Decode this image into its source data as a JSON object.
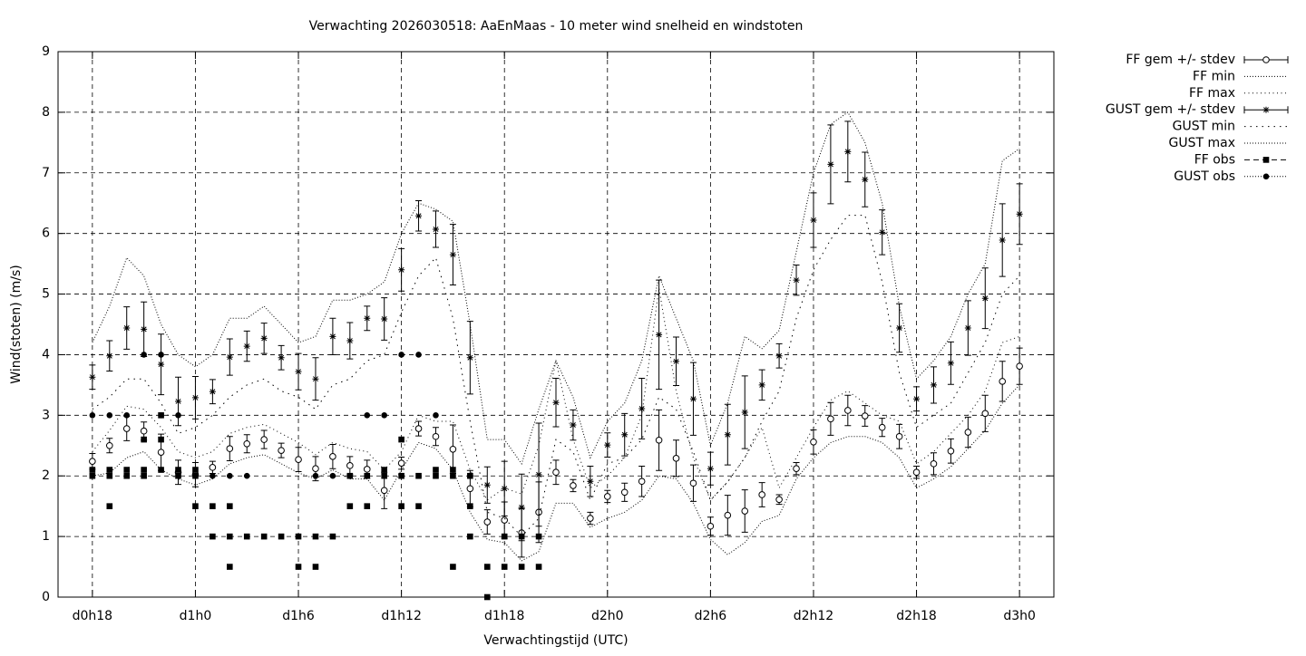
{
  "chart_data": {
    "type": "line",
    "title": "Verwachting 2026030518: AaEnMaas - 10 meter wind snelheid en windstoten",
    "x_label": "Verwachtingstijd (UTC)",
    "y_label": "Wind(stoten) (m/s)",
    "color": "#000000",
    "grid": true,
    "legend": "outside-right",
    "xlim": [
      16,
      74
    ],
    "ylim": [
      0,
      9
    ],
    "yticks": [
      0,
      1,
      2,
      3,
      4,
      5,
      6,
      7,
      8,
      9
    ],
    "xticks": [
      {
        "value": 18,
        "label": "d0h18"
      },
      {
        "value": 24,
        "label": "d1h0"
      },
      {
        "value": 30,
        "label": "d1h6"
      },
      {
        "value": 36,
        "label": "d1h12"
      },
      {
        "value": 42,
        "label": "d1h18"
      },
      {
        "value": 48,
        "label": "d2h0"
      },
      {
        "value": 54,
        "label": "d2h6"
      },
      {
        "value": 60,
        "label": "d2h12"
      },
      {
        "value": 66,
        "label": "d2h18"
      },
      {
        "value": 72,
        "label": "d3h0"
      }
    ],
    "x": [
      18,
      19,
      20,
      21,
      22,
      23,
      24,
      25,
      26,
      27,
      28,
      29,
      30,
      31,
      32,
      33,
      34,
      35,
      36,
      37,
      38,
      39,
      40,
      41,
      42,
      43,
      44,
      45,
      46,
      47,
      48,
      49,
      50,
      51,
      52,
      53,
      54,
      55,
      56,
      57,
      58,
      59,
      60,
      61,
      62,
      63,
      64,
      65,
      66,
      67,
      68,
      69,
      70,
      71,
      72
    ],
    "series": [
      {
        "name": "FF gem +/- stdev",
        "style": "errorbar-circle",
        "values": [
          2.24,
          2.5,
          2.78,
          2.74,
          2.39,
          2.06,
          2.02,
          2.14,
          2.45,
          2.53,
          2.6,
          2.42,
          2.27,
          2.12,
          2.32,
          2.17,
          2.11,
          1.76,
          2.21,
          2.78,
          2.65,
          2.44,
          1.79,
          1.24,
          1.27,
          1.06,
          1.4,
          2.06,
          1.84,
          1.3,
          1.66,
          1.73,
          1.91,
          2.59,
          2.29,
          1.88,
          1.17,
          1.35,
          1.42,
          1.69,
          1.61,
          2.12,
          2.56,
          2.94,
          3.08,
          2.99,
          2.8,
          2.65,
          2.06,
          2.2,
          2.41,
          2.72,
          3.03,
          3.56,
          3.81
        ],
        "errors": [
          0.13,
          0.12,
          0.2,
          0.15,
          0.3,
          0.2,
          0.2,
          0.1,
          0.2,
          0.15,
          0.15,
          0.12,
          0.2,
          0.2,
          0.2,
          0.15,
          0.15,
          0.3,
          0.1,
          0.12,
          0.15,
          0.4,
          0.3,
          0.2,
          0.3,
          0.4,
          0.5,
          0.2,
          0.1,
          0.1,
          0.1,
          0.15,
          0.25,
          0.5,
          0.3,
          0.3,
          0.15,
          0.33,
          0.35,
          0.2,
          0.08,
          0.1,
          0.2,
          0.27,
          0.25,
          0.17,
          0.15,
          0.2,
          0.1,
          0.18,
          0.2,
          0.25,
          0.3,
          0.33,
          0.3
        ]
      },
      {
        "name": "FF min",
        "style": "dotted-fine",
        "values": [
          2.0,
          2.05,
          2.3,
          2.4,
          2.1,
          1.95,
          1.85,
          1.95,
          2.2,
          2.3,
          2.35,
          2.2,
          2.05,
          1.95,
          2.1,
          1.95,
          1.95,
          1.6,
          2.1,
          2.55,
          2.45,
          2.1,
          1.4,
          0.95,
          0.9,
          0.6,
          0.75,
          1.55,
          1.55,
          1.15,
          1.3,
          1.4,
          1.6,
          2.0,
          1.95,
          1.55,
          0.95,
          0.7,
          0.9,
          1.25,
          1.35,
          1.95,
          2.3,
          2.55,
          2.65,
          2.65,
          2.55,
          2.3,
          1.8,
          1.95,
          2.15,
          2.45,
          2.75,
          3.2,
          3.5
        ]
      },
      {
        "name": "FF max",
        "style": "dotted-loose",
        "values": [
          2.4,
          2.75,
          3.15,
          3.1,
          2.8,
          2.4,
          2.3,
          2.4,
          2.7,
          2.8,
          2.85,
          2.7,
          2.55,
          2.35,
          2.55,
          2.45,
          2.4,
          2.1,
          2.4,
          3.0,
          2.9,
          2.9,
          2.1,
          1.6,
          1.8,
          1.7,
          2.5,
          3.9,
          2.6,
          1.8,
          2.0,
          2.3,
          3.0,
          5.1,
          3.4,
          2.3,
          1.6,
          1.9,
          2.3,
          2.8,
          1.8,
          2.3,
          2.8,
          3.25,
          3.4,
          3.2,
          3.0,
          2.9,
          2.2,
          2.4,
          2.7,
          3.0,
          3.4,
          4.2,
          4.3
        ]
      },
      {
        "name": "GUST gem +/- stdev",
        "style": "errorbar-star",
        "values": [
          3.63,
          3.98,
          4.44,
          4.42,
          3.84,
          3.23,
          3.29,
          3.39,
          3.96,
          4.14,
          4.27,
          3.95,
          3.72,
          3.6,
          4.3,
          4.23,
          4.6,
          4.59,
          5.4,
          6.29,
          6.07,
          5.65,
          3.95,
          1.85,
          1.79,
          1.48,
          2.02,
          3.21,
          2.84,
          1.91,
          2.51,
          2.68,
          3.11,
          4.33,
          3.89,
          3.27,
          2.12,
          2.68,
          3.05,
          3.5,
          3.98,
          5.23,
          6.22,
          7.14,
          7.35,
          6.89,
          6.02,
          4.44,
          3.27,
          3.5,
          3.86,
          4.44,
          4.93,
          5.89,
          6.32
        ],
        "errors": [
          0.2,
          0.25,
          0.35,
          0.45,
          0.5,
          0.4,
          0.35,
          0.2,
          0.3,
          0.25,
          0.25,
          0.2,
          0.3,
          0.35,
          0.3,
          0.3,
          0.2,
          0.35,
          0.35,
          0.25,
          0.3,
          0.5,
          0.6,
          0.3,
          0.45,
          0.55,
          0.85,
          0.4,
          0.25,
          0.25,
          0.2,
          0.35,
          0.5,
          0.9,
          0.4,
          0.6,
          0.27,
          0.5,
          0.6,
          0.25,
          0.2,
          0.25,
          0.45,
          0.65,
          0.5,
          0.45,
          0.37,
          0.4,
          0.2,
          0.3,
          0.35,
          0.45,
          0.5,
          0.6,
          0.5
        ]
      },
      {
        "name": "GUST min",
        "style": "dotted-coarse",
        "values": [
          3.1,
          3.3,
          3.6,
          3.6,
          3.2,
          2.7,
          2.8,
          3.0,
          3.3,
          3.5,
          3.6,
          3.4,
          3.3,
          3.1,
          3.5,
          3.6,
          3.9,
          4.0,
          4.7,
          5.3,
          5.6,
          4.6,
          2.9,
          1.4,
          1.3,
          1.0,
          1.3,
          2.6,
          2.4,
          1.6,
          2.2,
          2.3,
          2.6,
          3.3,
          3.1,
          2.4,
          1.6,
          1.9,
          2.3,
          2.9,
          3.4,
          4.6,
          5.4,
          5.9,
          6.3,
          6.3,
          5.2,
          3.7,
          2.8,
          3.0,
          3.2,
          3.7,
          4.2,
          5.0,
          5.3
        ]
      },
      {
        "name": "GUST max",
        "style": "dotted-fine",
        "values": [
          4.2,
          4.8,
          5.6,
          5.3,
          4.5,
          4.0,
          3.8,
          4.0,
          4.6,
          4.6,
          4.8,
          4.5,
          4.2,
          4.3,
          4.9,
          4.9,
          5.0,
          5.2,
          6.0,
          6.5,
          6.4,
          6.2,
          4.5,
          2.6,
          2.6,
          2.2,
          3.1,
          3.9,
          3.3,
          2.3,
          2.9,
          3.2,
          3.9,
          5.3,
          4.6,
          3.9,
          2.5,
          3.2,
          4.3,
          4.1,
          4.4,
          5.7,
          7.0,
          7.8,
          8.0,
          7.5,
          6.5,
          4.8,
          3.6,
          3.9,
          4.3,
          5.0,
          5.5,
          7.2,
          7.4
        ]
      },
      {
        "name": "FF obs",
        "style": "points-square",
        "x": [
          18,
          18,
          19,
          19,
          19,
          20,
          20,
          21,
          21,
          21,
          22,
          22,
          22,
          23,
          23,
          24,
          24,
          24,
          25,
          25,
          26,
          26,
          26,
          27,
          28,
          29,
          30,
          30,
          31,
          31,
          32,
          33,
          33,
          34,
          34,
          35,
          35,
          36,
          36,
          36,
          37,
          37,
          38,
          38,
          39,
          39,
          39,
          40,
          40,
          40,
          41,
          41,
          42,
          42,
          43,
          43,
          44,
          44
        ],
        "values": [
          2.0,
          2.1,
          2.0,
          2.1,
          1.5,
          2.0,
          2.1,
          2.6,
          2.1,
          2.0,
          2.6,
          3.0,
          2.1,
          2.0,
          2.1,
          2.0,
          2.1,
          1.5,
          1.0,
          1.5,
          1.0,
          0.5,
          1.5,
          1.0,
          1.0,
          1.0,
          1.0,
          0.5,
          1.0,
          0.5,
          1.0,
          2.0,
          1.5,
          2.0,
          1.5,
          2.0,
          2.1,
          2.0,
          2.6,
          1.5,
          2.0,
          1.5,
          2.0,
          2.1,
          2.0,
          2.1,
          0.5,
          2.0,
          1.5,
          1.0,
          0.5,
          0.0,
          0.5,
          1.0,
          0.5,
          1.0,
          0.5,
          1.0
        ]
      },
      {
        "name": "GUST obs",
        "style": "points-circle",
        "x": [
          18,
          19,
          20,
          21,
          22,
          22,
          23,
          24,
          25,
          26,
          27,
          31,
          32,
          33,
          34,
          35,
          36,
          37,
          38,
          40
        ],
        "values": [
          3.0,
          3.0,
          3.0,
          4.0,
          4.0,
          3.0,
          3.0,
          2.0,
          2.0,
          2.0,
          2.0,
          2.0,
          2.0,
          2.0,
          3.0,
          3.0,
          4.0,
          4.0,
          3.0,
          2.0
        ]
      }
    ]
  }
}
